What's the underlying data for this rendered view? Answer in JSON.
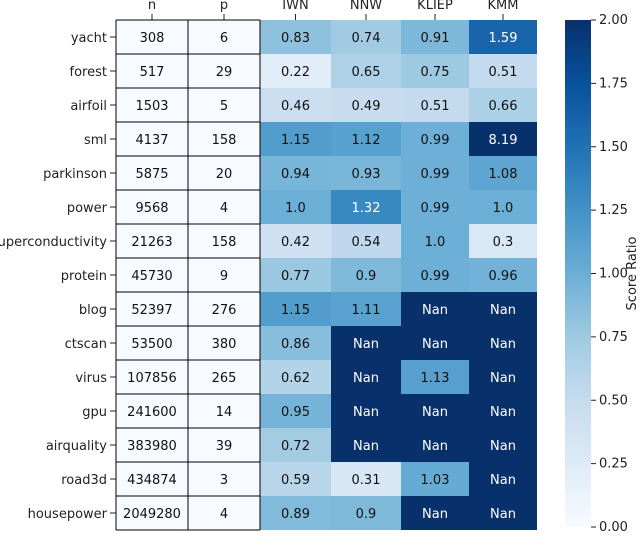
{
  "chart_data": {
    "type": "heatmap",
    "columns": [
      "n",
      "p",
      "IWN",
      "NNW",
      "KLIEP",
      "KMM"
    ],
    "rows": [
      {
        "name": "yacht",
        "n": "308",
        "p": "6",
        "IWN": "0.83",
        "NNW": "0.74",
        "KLIEP": "0.91",
        "KMM": "1.59"
      },
      {
        "name": "forest",
        "n": "517",
        "p": "29",
        "IWN": "0.22",
        "NNW": "0.65",
        "KLIEP": "0.75",
        "KMM": "0.51"
      },
      {
        "name": "airfoil",
        "n": "1503",
        "p": "5",
        "IWN": "0.46",
        "NNW": "0.49",
        "KLIEP": "0.51",
        "KMM": "0.66"
      },
      {
        "name": "sml",
        "n": "4137",
        "p": "158",
        "IWN": "1.15",
        "NNW": "1.12",
        "KLIEP": "0.99",
        "KMM": "8.19"
      },
      {
        "name": "parkinson",
        "n": "5875",
        "p": "20",
        "IWN": "0.94",
        "NNW": "0.93",
        "KLIEP": "0.99",
        "KMM": "1.08"
      },
      {
        "name": "power",
        "n": "9568",
        "p": "4",
        "IWN": "1.0",
        "NNW": "1.32",
        "KLIEP": "0.99",
        "KMM": "1.0"
      },
      {
        "name": "superconductivity",
        "n": "21263",
        "p": "158",
        "IWN": "0.42",
        "NNW": "0.54",
        "KLIEP": "1.0",
        "KMM": "0.3"
      },
      {
        "name": "protein",
        "n": "45730",
        "p": "9",
        "IWN": "0.77",
        "NNW": "0.9",
        "KLIEP": "0.99",
        "KMM": "0.96"
      },
      {
        "name": "blog",
        "n": "52397",
        "p": "276",
        "IWN": "1.15",
        "NNW": "1.11",
        "KLIEP": "Nan",
        "KMM": "Nan"
      },
      {
        "name": "ctscan",
        "n": "53500",
        "p": "380",
        "IWN": "0.86",
        "NNW": "Nan",
        "KLIEP": "Nan",
        "KMM": "Nan"
      },
      {
        "name": "virus",
        "n": "107856",
        "p": "265",
        "IWN": "0.62",
        "NNW": "Nan",
        "KLIEP": "1.13",
        "KMM": "Nan"
      },
      {
        "name": "gpu",
        "n": "241600",
        "p": "14",
        "IWN": "0.95",
        "NNW": "Nan",
        "KLIEP": "Nan",
        "KMM": "Nan"
      },
      {
        "name": "airquality",
        "n": "383980",
        "p": "39",
        "IWN": "0.72",
        "NNW": "Nan",
        "KLIEP": "Nan",
        "KMM": "Nan"
      },
      {
        "name": "road3d",
        "n": "434874",
        "p": "3",
        "IWN": "0.59",
        "NNW": "0.31",
        "KLIEP": "1.03",
        "KMM": "Nan"
      },
      {
        "name": "housepower",
        "n": "2049280",
        "p": "4",
        "IWN": "0.89",
        "NNW": "0.9",
        "KLIEP": "Nan",
        "KMM": "Nan"
      }
    ],
    "colorbar": {
      "label": "Score Ratio",
      "range": [
        0.0,
        2.0
      ],
      "ticks": [
        "0.00",
        "0.25",
        "0.50",
        "0.75",
        "1.00",
        "1.25",
        "1.50",
        "1.75",
        "2.00"
      ],
      "colormap": "Blues"
    },
    "colors": {
      "plain_cell": "#f7fbff",
      "nan_cell": "#08306b",
      "grid_line": "#000000",
      "dark_text": "#111111",
      "light_text": "#ffffff"
    }
  }
}
